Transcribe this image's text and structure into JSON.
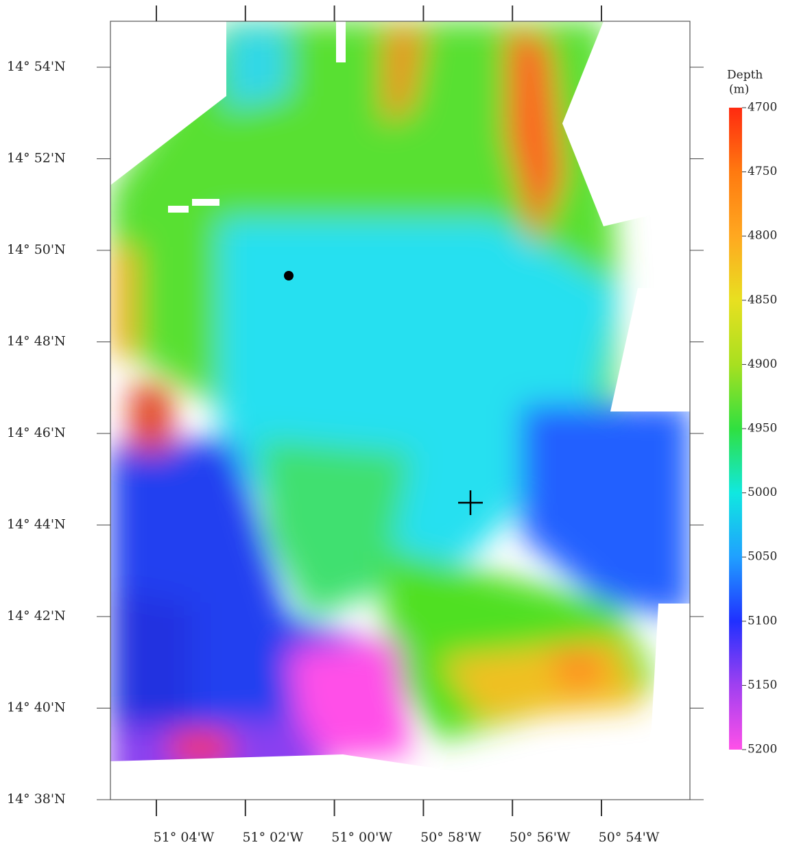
{
  "map": {
    "lat_labels": [
      "14° 54'N",
      "14° 52'N",
      "14° 50'N",
      "14° 48'N",
      "14° 46'N",
      "14° 44'N",
      "14° 42'N",
      "14° 40'N",
      "14° 38'N"
    ],
    "lon_labels": [
      "51° 04'W",
      "51° 02'W",
      "51° 00'W",
      "50° 58'W",
      "50° 56'W",
      "50° 54'W"
    ],
    "colorbar": {
      "title_lines": [
        "Depth",
        "(m)"
      ],
      "range": [
        4700,
        5200
      ],
      "ticks": [
        4700,
        4750,
        4800,
        4850,
        4900,
        4950,
        5000,
        5050,
        5100,
        5150,
        5200
      ],
      "colors": [
        "#ff2a10",
        "#ff7a10",
        "#ffa820",
        "#e8e020",
        "#a8e020",
        "#30e040",
        "#10e8e0",
        "#20a0ff",
        "#2030ff",
        "#a040f0",
        "#ff50e8"
      ]
    }
  }
}
